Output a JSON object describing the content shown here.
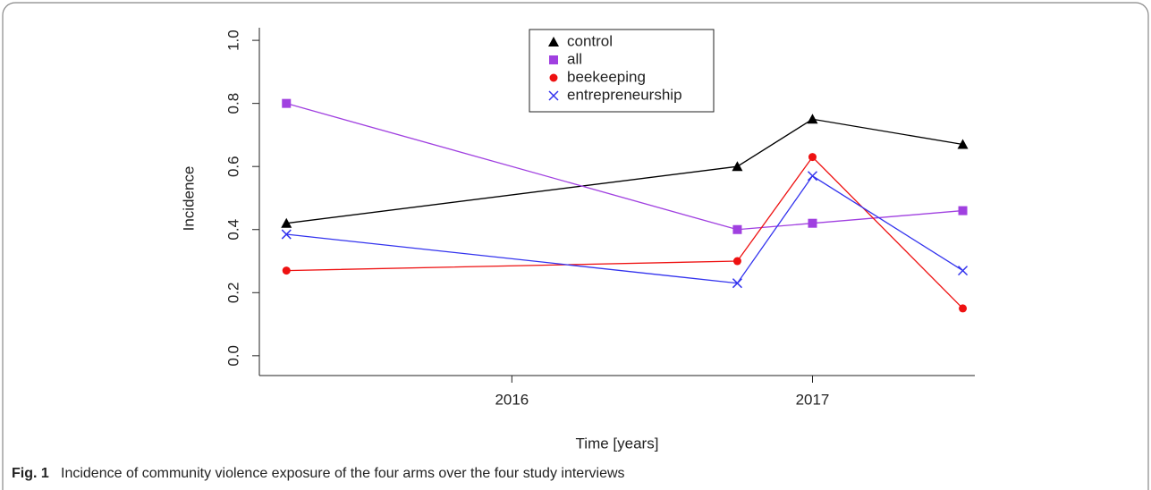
{
  "chart_data": {
    "type": "line",
    "x": [
      2015.25,
      2016.75,
      2017.0,
      2017.5
    ],
    "xlim": [
      2015.16,
      2017.54
    ],
    "xticks": [
      2016,
      2017
    ],
    "ylim": [
      -0.06,
      1.04
    ],
    "yticks": [
      {
        "value": 0,
        "label": "0.0"
      },
      {
        "value": 0.2,
        "label": "0.2"
      },
      {
        "value": 0.4,
        "label": "0.4"
      },
      {
        "value": 0.6,
        "label": "0.6"
      },
      {
        "value": 0.8,
        "label": "0.8"
      },
      {
        "value": 1,
        "label": "1.0"
      }
    ],
    "xlabel": "Time [years]",
    "ylabel": "Incidence",
    "legend": "top-center",
    "series": [
      {
        "name": "control",
        "color": "#000000",
        "marker": "triangle",
        "values": [
          0.42,
          0.6,
          0.75,
          0.67
        ]
      },
      {
        "name": "all",
        "color": "#a040e0",
        "marker": "square",
        "values": [
          0.8,
          0.4,
          0.42,
          0.46
        ]
      },
      {
        "name": "beekeeping",
        "color": "#ee1111",
        "marker": "circle",
        "values": [
          0.27,
          0.3,
          0.63,
          0.15
        ]
      },
      {
        "name": "entrepreneurship",
        "color": "#3333ee",
        "marker": "x",
        "values": [
          0.385,
          0.23,
          0.57,
          0.27
        ]
      }
    ]
  },
  "caption": {
    "label": "Fig. 1",
    "text": "Incidence of community violence exposure of the four arms over the four study interviews"
  }
}
